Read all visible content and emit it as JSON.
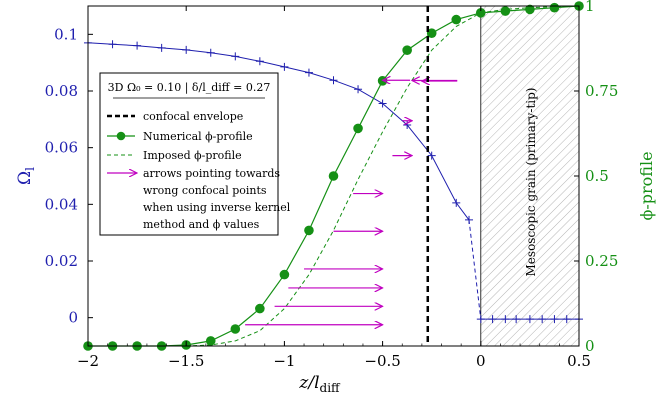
{
  "chart_data": {
    "type": "line",
    "xlabel": "z/l_diff",
    "ylabel_left": "Ω_l",
    "ylabel_right": "ϕ-profile",
    "xlim": [
      -2,
      0.5
    ],
    "ylim_left": [
      -0.01,
      0.11
    ],
    "ylim_right": [
      0,
      1
    ],
    "xticks": [
      -2,
      -1.5,
      -1,
      -0.5,
      0,
      0.5
    ],
    "xtick_labels": [
      "−2",
      "−1.5",
      "−1",
      "−0.5",
      "0",
      "0.5"
    ],
    "yticks_left": [
      0,
      0.02,
      0.04,
      0.06,
      0.08,
      0.1
    ],
    "ytick_labels_left": [
      "0",
      "0.02",
      "0.04",
      "0.06",
      "0.08",
      "0.1"
    ],
    "yticks_right": [
      0,
      0.25,
      0.5,
      0.75,
      1
    ],
    "ytick_labels_right": [
      "0",
      "0.25",
      "0.5",
      "0.75",
      "1"
    ],
    "colors": {
      "omega": "#1f1fae",
      "phi": "#159015",
      "arrow": "#c000c0",
      "confocal": "#000000",
      "hatch": "#b0b0b0"
    },
    "confocal_envelope_x": -0.27,
    "grain_region_x": [
      0,
      0.5
    ],
    "grain_label": "Mesoscopic grain (primary-tip)",
    "omega_series": {
      "x": [
        -2,
        -1.875,
        -1.75,
        -1.625,
        -1.5,
        -1.375,
        -1.25,
        -1.125,
        -1,
        -0.875,
        -0.75,
        -0.625,
        -0.5,
        -0.375,
        -0.25,
        -0.125,
        -0.06,
        0,
        0.06,
        0.125,
        0.18,
        0.25,
        0.3125,
        0.375,
        0.4375,
        0.5
      ],
      "y": [
        0.097,
        0.0965,
        0.096,
        0.0952,
        0.0945,
        0.0935,
        0.0922,
        0.0905,
        0.0885,
        0.0865,
        0.0838,
        0.0806,
        0.0756,
        0.068,
        0.0572,
        0.0405,
        0.0345,
        -0.0005,
        -0.0005,
        -0.0005,
        -0.0005,
        -0.0005,
        -0.0005,
        -0.0005,
        -0.0005,
        -0.0005
      ]
    },
    "phi_numerical": {
      "x": [
        -2,
        -1.875,
        -1.75,
        -1.625,
        -1.5,
        -1.375,
        -1.25,
        -1.125,
        -1,
        -0.875,
        -0.75,
        -0.625,
        -0.5,
        -0.375,
        -0.25,
        -0.125,
        0,
        0.125,
        0.25,
        0.375,
        0.5
      ],
      "y": [
        0,
        0,
        0,
        0,
        0.003,
        0.015,
        0.05,
        0.11,
        0.21,
        0.34,
        0.5,
        0.64,
        0.78,
        0.87,
        0.92,
        0.96,
        0.98,
        0.985,
        0.99,
        0.995,
        1.0
      ]
    },
    "phi_imposed": {
      "x": [
        -2,
        -1.75,
        -1.5,
        -1.375,
        -1.25,
        -1.125,
        -1,
        -0.875,
        -0.75,
        -0.625,
        -0.5,
        -0.375,
        -0.25,
        -0.125,
        0,
        0.125,
        0.25,
        0.375,
        0.5
      ],
      "y": [
        0,
        0,
        0,
        0.003,
        0.015,
        0.045,
        0.11,
        0.21,
        0.34,
        0.49,
        0.63,
        0.76,
        0.87,
        0.94,
        0.98,
        0.99,
        0.995,
        0.998,
        1.0
      ]
    },
    "arrows": [
      {
        "x1": -1.2,
        "x2": -0.5,
        "y": -0.0025
      },
      {
        "x1": -1.05,
        "x2": -0.5,
        "y": 0.004
      },
      {
        "x1": -0.98,
        "x2": -0.5,
        "y": 0.0105
      },
      {
        "x1": -0.9,
        "x2": -0.5,
        "y": 0.0172
      },
      {
        "x1": -0.75,
        "x2": -0.5,
        "y": 0.0305
      },
      {
        "x1": -0.65,
        "x2": -0.5,
        "y": 0.0438
      },
      {
        "x1": -0.45,
        "x2": -0.35,
        "y": 0.0572
      },
      {
        "x1": -0.4,
        "x2": -0.35,
        "y": 0.0695
      },
      {
        "x1": -0.36,
        "x2": -0.5,
        "y": 0.0838
      },
      {
        "x1": -0.12,
        "x2": -0.3,
        "y": 0.0835
      },
      {
        "x1": -0.12,
        "x2": -0.35,
        "y": 0.0837
      }
    ]
  },
  "legend": {
    "title": "3D Ω₀ = 0.10 | δ/l_diff = 0.27",
    "items": [
      {
        "label": "confocal envelope"
      },
      {
        "label": "Numerical ϕ-profile"
      },
      {
        "label": "Imposed ϕ-profile"
      },
      {
        "label": "arrows pointing towards"
      },
      {
        "label": "wrong confocal points"
      },
      {
        "label": "when using inverse kernel"
      },
      {
        "label": "method and ϕ values"
      }
    ]
  }
}
